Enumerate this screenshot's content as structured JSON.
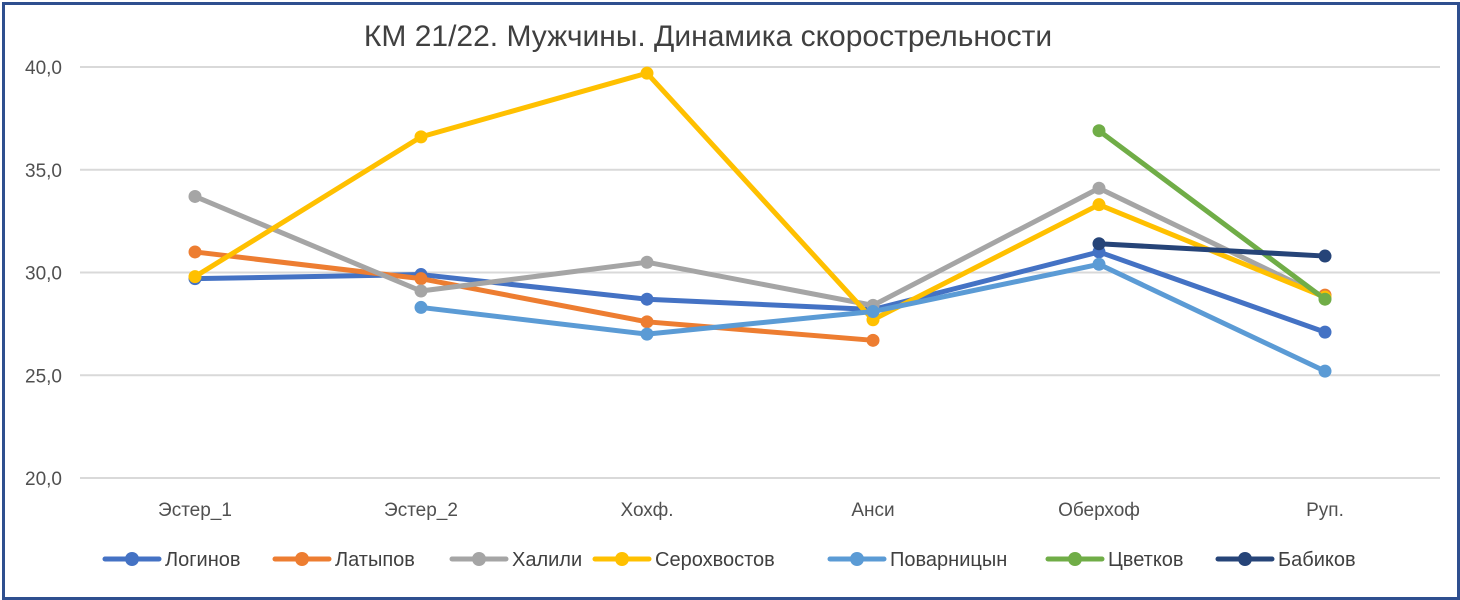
{
  "chart_data": {
    "type": "line",
    "title": "КМ 21/22. Мужчины. Динамика скорострельности",
    "categories": [
      "Эстер_1",
      "Эстер_2",
      "Хохф.",
      "Анси",
      "Оберхоф",
      "Руп."
    ],
    "ylim": [
      20,
      40
    ],
    "yticks": [
      "20,0",
      "25,0",
      "30,0",
      "35,0",
      "40,0"
    ],
    "ytick_values": [
      20,
      25,
      30,
      35,
      40
    ],
    "grid": true,
    "legend_position": "bottom",
    "series": [
      {
        "name": "Логинов",
        "color": "#4472c4",
        "values": [
          29.7,
          29.9,
          28.7,
          28.2,
          31.0,
          27.1
        ]
      },
      {
        "name": "Латыпов",
        "color": "#ed7d31",
        "values": [
          31.0,
          29.7,
          27.6,
          26.7,
          null,
          28.9
        ]
      },
      {
        "name": "Халили",
        "color": "#a5a5a5",
        "values": [
          33.7,
          29.1,
          30.5,
          28.4,
          34.1,
          28.8
        ]
      },
      {
        "name": "Серохвостов",
        "color": "#ffc000",
        "values": [
          29.8,
          36.6,
          39.7,
          27.7,
          33.3,
          28.8
        ]
      },
      {
        "name": "Поварницын",
        "color": "#5b9bd5",
        "values": [
          null,
          28.3,
          27.0,
          28.1,
          30.4,
          25.2
        ]
      },
      {
        "name": "Цветков",
        "color": "#70ad47",
        "values": [
          null,
          null,
          null,
          null,
          36.9,
          28.7
        ]
      },
      {
        "name": "Бабиков",
        "color": "#264478",
        "values": [
          null,
          null,
          null,
          null,
          31.4,
          30.8
        ]
      }
    ]
  }
}
